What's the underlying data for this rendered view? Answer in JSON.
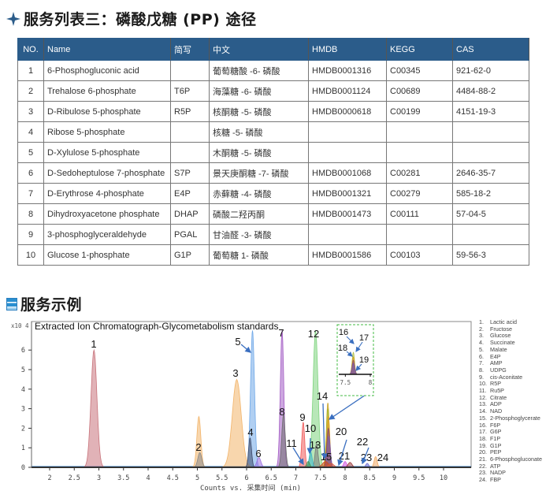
{
  "section1": {
    "title": "服务列表三：磷酸戊糖 (PP) 途径",
    "icon": "four-point-star-icon",
    "accent_color": "#2b5c8a"
  },
  "table": {
    "headers": [
      "NO.",
      "Name",
      "简写",
      "中文",
      "HMDB",
      "KEGG",
      "CAS"
    ],
    "header_bg": "#2b5c8a",
    "rows": [
      {
        "no": "1",
        "name": "6-Phosphogluconic acid",
        "abbr": "",
        "cn": "葡萄糖酸 -6- 磷酸",
        "hmdb": "HMDB0001316",
        "kegg": "C00345",
        "cas": "921-62-0"
      },
      {
        "no": "2",
        "name": "Trehalose 6-phosphate",
        "abbr": "T6P",
        "cn": "海藻糖 -6- 磷酸",
        "hmdb": "HMDB0001124",
        "kegg": "C00689",
        "cas": "4484-88-2"
      },
      {
        "no": "3",
        "name": "D-Ribulose 5-phosphate",
        "abbr": "R5P",
        "cn": "核酮糖 -5- 磷酸",
        "hmdb": "HMDB0000618",
        "kegg": "C00199",
        "cas": "4151-19-3"
      },
      {
        "no": "4",
        "name": "Ribose 5-phosphate",
        "abbr": "",
        "cn": "核糖 -5- 磷酸",
        "hmdb": "",
        "kegg": "",
        "cas": ""
      },
      {
        "no": "5",
        "name": "D-Xylulose 5-phosphate",
        "abbr": "",
        "cn": "木酮糖 -5- 磷酸",
        "hmdb": "",
        "kegg": "",
        "cas": ""
      },
      {
        "no": "6",
        "name": "D-Sedoheptulose 7-phosphate",
        "abbr": "S7P",
        "cn": "景天庚酮糖 -7- 磷酸",
        "hmdb": "HMDB0001068",
        "kegg": "C00281",
        "cas": "2646-35-7"
      },
      {
        "no": "7",
        "name": "D-Erythrose 4-phosphate",
        "abbr": "E4P",
        "cn": "赤藓糖 -4- 磷酸",
        "hmdb": "HMDB0001321",
        "kegg": "C00279",
        "cas": "585-18-2"
      },
      {
        "no": "8",
        "name": "Dihydroxyacetone phosphate",
        "abbr": "DHAP",
        "cn": "磷酸二羟丙酮",
        "hmdb": "HMDB0001473",
        "kegg": "C00111",
        "cas": "57-04-5"
      },
      {
        "no": "9",
        "name": "3-phosphoglyceraldehyde",
        "abbr": "PGAL",
        "cn": "甘油醛 -3- 磷酸",
        "hmdb": "",
        "kegg": "",
        "cas": ""
      },
      {
        "no": "10",
        "name": "Glucose 1-phosphate",
        "abbr": "G1P",
        "cn": "葡萄糖 1- 磷酸",
        "hmdb": "HMDB0001586",
        "kegg": "C00103",
        "cas": "59-56-3"
      }
    ]
  },
  "section2": {
    "title": "服务示例",
    "icon": "document-box-icon"
  },
  "chart_data": {
    "type": "area",
    "title": "Extracted Ion Chromatograph-Glycometabolism standards",
    "xlabel": "Counts vs. 采集时间 (min)",
    "ylabel": "",
    "y_multiplier": "x10 4",
    "xlim": [
      1.7,
      10.7
    ],
    "ylim": [
      0,
      6.5
    ],
    "xticks": [
      "2",
      "2.5",
      "3",
      "3.5",
      "4",
      "4.5",
      "5",
      "5.5",
      "6",
      "6.5",
      "7",
      "7.5",
      "8",
      "8.5",
      "9",
      "9.5",
      "10"
    ],
    "yticks": [
      "0",
      "1",
      "2",
      "3",
      "4",
      "5",
      "6"
    ],
    "grid": false,
    "legend_position": "right",
    "legend": [
      "Lactic acid",
      "Fructose",
      "Glucose",
      "Succinate",
      "Malate",
      "E4P",
      "AMP",
      "UDPG",
      "cis-Aconitate",
      "R5P",
      "Ru5P",
      "Citrate",
      "ADP",
      "NAD",
      "2-Phosphoglycerate",
      "F6P",
      "G6P",
      "F1P",
      "G1P",
      "PEP",
      "6-Phosphogluconate",
      "ATP",
      "NADP",
      "FBP"
    ],
    "series": [
      {
        "id": 1,
        "name": "Lactic acid",
        "rt": 2.9,
        "height": 6.0,
        "width": 0.06,
        "color": "#c8737b"
      },
      {
        "id": 2,
        "name": "Fructose",
        "rt": 5.05,
        "height": 0.75,
        "width": 0.04,
        "color": "#8a8a8a"
      },
      {
        "id": 3,
        "name": "Glucose",
        "rt": 5.8,
        "height": 4.5,
        "width": 0.09,
        "color": "#f2b46a"
      },
      {
        "id": 4,
        "name": "Succinate",
        "rt": 6.07,
        "height": 1.5,
        "width": 0.03,
        "color": "#3d4a6b"
      },
      {
        "id": 5,
        "name": "Malate",
        "rt": 6.12,
        "height": 7.0,
        "width": 0.04,
        "color": "#6fa8e8"
      },
      {
        "id": 6,
        "name": "E4P",
        "rt": 6.25,
        "height": 0.5,
        "width": 0.04,
        "color": "#9b6fe0"
      },
      {
        "id": 7,
        "name": "AMP",
        "rt": 6.72,
        "height": 7.0,
        "width": 0.035,
        "color": "#a35cc4"
      },
      {
        "id": 8,
        "name": "UDPG",
        "rt": 6.75,
        "height": 2.7,
        "width": 0.035,
        "color": "#6e6e6e"
      },
      {
        "id": 9,
        "name": "cis-Aconitate",
        "rt": 7.15,
        "height": 2.3,
        "width": 0.03,
        "color": "#f05a5a"
      },
      {
        "id": 10,
        "name": "R5P",
        "rt": 7.3,
        "height": 0.8,
        "width": 0.03,
        "color": "#3cb4c8"
      },
      {
        "id": 11,
        "name": "Ru5P",
        "rt": 7.25,
        "height": 0.3,
        "width": 0.03,
        "color": "#4a8f4a"
      },
      {
        "id": 12,
        "name": "Citrate",
        "rt": 7.4,
        "height": 7.0,
        "width": 0.05,
        "color": "#7ed47e"
      },
      {
        "id": 13,
        "name": "ADP",
        "rt": 7.42,
        "height": 1.2,
        "width": 0.03,
        "color": "#7a7a7a"
      },
      {
        "id": 14,
        "name": "NAD",
        "rt": 7.65,
        "height": 3.3,
        "width": 0.03,
        "color": "#c9a227"
      },
      {
        "id": 15,
        "name": "2-Phosphoglycerate",
        "rt": 7.6,
        "height": 0.3,
        "width": 0.06,
        "color": "#d24a1a"
      },
      {
        "id": 16,
        "name": "F6P",
        "rt": 7.65,
        "height": 3.0,
        "width": 0.03,
        "color": "#a8b830"
      },
      {
        "id": 17,
        "name": "G6P",
        "rt": 7.66,
        "height": 2.6,
        "width": 0.03,
        "color": "#e0a020"
      },
      {
        "id": 18,
        "name": "F1P",
        "rt": 7.66,
        "height": 2.0,
        "width": 0.03,
        "color": "#8a4a6a"
      },
      {
        "id": 19,
        "name": "G1P",
        "rt": 7.67,
        "height": 1.6,
        "width": 0.03,
        "color": "#7a5ab0"
      },
      {
        "id": 20,
        "name": "PEP",
        "rt": 7.72,
        "height": 0.2,
        "width": 0.05,
        "color": "#d85a3a"
      },
      {
        "id": 21,
        "name": "6-Phosphogluconate",
        "rt": 8.0,
        "height": 0.3,
        "width": 0.03,
        "color": "#d050e0"
      },
      {
        "id": 22,
        "name": "ATP",
        "rt": 8.1,
        "height": 0.25,
        "width": 0.04,
        "color": "#9a3a3a"
      },
      {
        "id": 23,
        "name": "NADP",
        "rt": 8.45,
        "height": 0.2,
        "width": 0.03,
        "color": "#6a6ad0"
      },
      {
        "id": 24,
        "name": "FBP",
        "rt": 8.62,
        "height": 0.55,
        "width": 0.03,
        "color": "#f0a860"
      }
    ],
    "extra_peaks": [
      {
        "rt": 5.03,
        "height": 2.6,
        "width": 0.04,
        "color": "#f2b46a",
        "note": "orange peak behind #2"
      }
    ],
    "inset": {
      "xlim": [
        7.4,
        8.0
      ],
      "xticks": [
        "7.5",
        "8"
      ],
      "labels": [
        "16",
        "17",
        "18",
        "19"
      ],
      "border_color": "#44bb44"
    }
  }
}
